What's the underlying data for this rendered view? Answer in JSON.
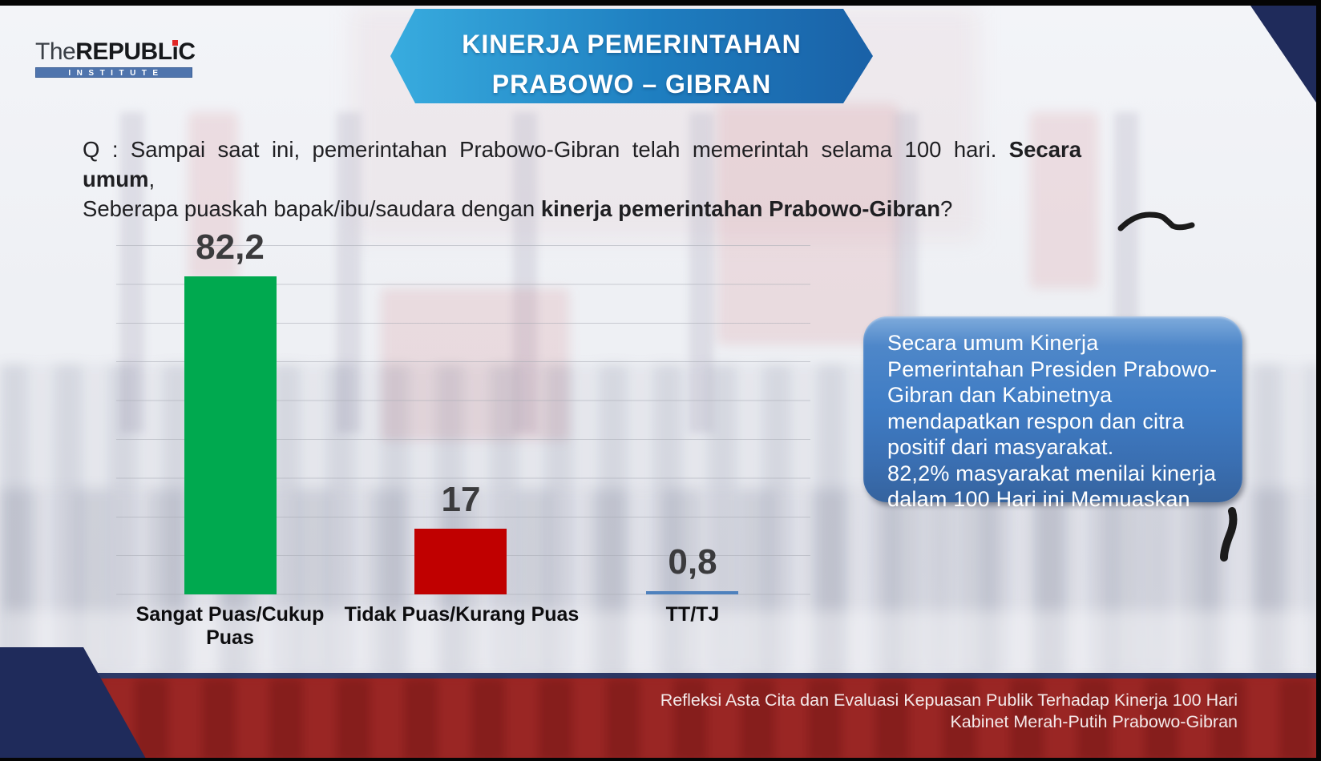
{
  "logo": {
    "name_pre": "REPUBL",
    "name_i": "i",
    "name_post": "C",
    "prefix": "The",
    "subtitle": "INSTITUTE"
  },
  "banner": {
    "line1": "KINERJA PEMERINTAHAN",
    "line2": "PRABOWO – GIBRAN"
  },
  "question": {
    "line1_normal": "Q : Sampai saat ini, pemerintahan Prabowo-Gibran telah memerintah selama 100 hari. ",
    "line1_bold": "Secara umum",
    "line1_tail": ",",
    "line2_normal": "Seberapa puaskah bapak/ibu/saudara dengan ",
    "line2_bold": "kinerja pemerintahan Prabowo-Gibran",
    "line2_tail": "?"
  },
  "chart_data": {
    "type": "bar",
    "categories": [
      "Sangat Puas/Cukup Puas",
      "Tidak Puas/Kurang Puas",
      "TT/TJ"
    ],
    "values": [
      82.2,
      17,
      0.8
    ],
    "value_labels": [
      "82,2",
      "17",
      "0,8"
    ],
    "bar_colors": [
      "#00A94F",
      "#C00000",
      "#4E81BD"
    ],
    "title": "",
    "xlabel": "",
    "ylabel": "",
    "ylim": [
      0,
      90
    ],
    "gridlines": true,
    "axis_tick_labels_visible": false,
    "legend": "none"
  },
  "callout": {
    "paragraph1": "Secara umum Kinerja Pemerintahan Presiden Prabowo-Gibran dan Kabinetnya mendapatkan respon dan citra positif dari masyarakat.",
    "paragraph2": "82,2% masyarakat menilai kinerja dalam 100 Hari ini Memuaskan"
  },
  "footer": {
    "line1": "Refleksi Asta Cita dan Evaluasi Kepuasan Publik Terhadap Kinerja 100 Hari",
    "line2": "Kabinet Merah-Putih Prabowo-Gibran"
  },
  "colors": {
    "banner_gradient_left": "#38ACDF",
    "banner_gradient_mid": "#1E7EC0",
    "banner_gradient_right": "#1A61A7",
    "bar_green": "#00A94F",
    "bar_red": "#C00000",
    "bar_blue": "#4E81BD",
    "callout_blue": "#3F7CC4",
    "footer_red": "#9B2422",
    "navy_accent": "#1F2B5B",
    "logo_bar_blue": "#4F74AD",
    "logo_dot_red": "#E02726",
    "value_label_gray": "#3B3B3D"
  }
}
